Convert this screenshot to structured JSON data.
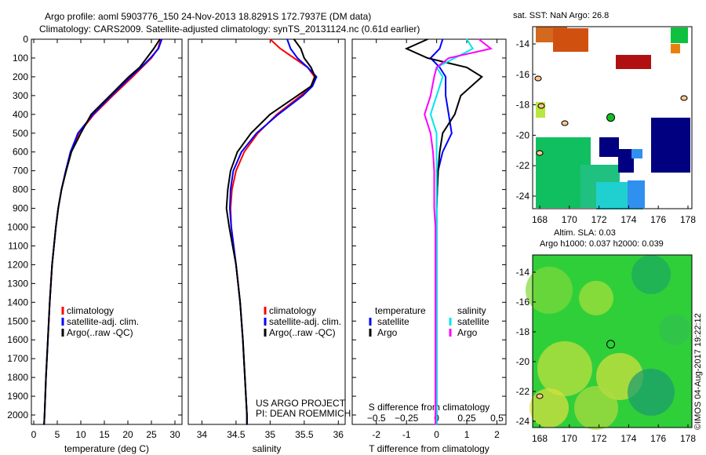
{
  "title_line1": "Argo profile: aoml 5903776_150 24-Nov-2013 18.8291S 172.7937E (DM data)",
  "title_line2": "Climatology: CARS2009. Satellite-adjusted climatology: synTS_20131124.nc (0.61d earlier)",
  "credit_line1": "US ARGO PROJECT",
  "credit_line2": "PI: DEAN ROEMMICH",
  "footer_stamp": "©IMOS 04-Aug-2017 19:22:12",
  "colors": {
    "climatology": "#ff0000",
    "satellite": "#0000ff",
    "argo": "#000000",
    "sal_satellite": "#00e5ee",
    "sal_argo": "#ff00ff"
  },
  "chart_data": [
    {
      "type": "line",
      "xlabel": "temperature (deg C)",
      "ylabel": "",
      "xlim": [
        -0.5,
        31.5
      ],
      "ylim": [
        2050,
        0
      ],
      "xticks": [
        0,
        5,
        10,
        15,
        20,
        25,
        30
      ],
      "yticks": [
        0,
        100,
        200,
        300,
        400,
        500,
        600,
        700,
        800,
        900,
        1000,
        1100,
        1200,
        1300,
        1400,
        1500,
        1600,
        1700,
        1800,
        1900,
        2000
      ],
      "legend": [
        "climatology",
        "satellite-adj. clim.",
        "Argo(..raw -QC)"
      ],
      "depth": [
        0,
        50,
        100,
        150,
        200,
        300,
        400,
        500,
        600,
        700,
        800,
        900,
        1000,
        1200,
        1400,
        1600,
        1800,
        2000,
        2050
      ],
      "series": [
        {
          "name": "climatology",
          "values": [
            27.0,
            26.4,
            25.0,
            23.0,
            21.0,
            16.8,
            12.8,
            9.6,
            7.9,
            6.8,
            5.9,
            5.2,
            4.7,
            3.9,
            3.4,
            3.0,
            2.6,
            2.3,
            2.2
          ]
        },
        {
          "name": "satellite-adj. clim.",
          "values": [
            27.2,
            26.5,
            24.8,
            22.8,
            20.6,
            16.5,
            12.6,
            9.4,
            7.8,
            6.8,
            5.9,
            5.2,
            4.7,
            3.9,
            3.4,
            3.0,
            2.6,
            2.3,
            2.2
          ]
        },
        {
          "name": "Argo(..raw -QC)",
          "values": [
            26.8,
            25.5,
            24.0,
            22.5,
            20.2,
            16.2,
            12.2,
            10.0,
            8.0,
            6.9,
            5.9,
            5.2,
            4.7,
            3.9,
            3.4,
            3.0,
            2.6,
            2.3,
            2.2
          ]
        }
      ]
    },
    {
      "type": "line",
      "xlabel": "salinity",
      "xlim": [
        33.8,
        36.1
      ],
      "ylim": [
        2050,
        0
      ],
      "xticks": [
        34,
        34.5,
        35,
        35.5,
        36
      ],
      "legend": [
        "climatology",
        "satellite-adj. clim.",
        "Argo(..raw -QC)"
      ],
      "depth": [
        0,
        50,
        100,
        150,
        200,
        250,
        300,
        400,
        500,
        600,
        700,
        800,
        900,
        1000,
        1200,
        1400,
        1600,
        1800,
        2000,
        2050
      ],
      "series": [
        {
          "name": "climatology",
          "values": [
            35.0,
            35.15,
            35.35,
            35.55,
            35.65,
            35.6,
            35.45,
            35.1,
            34.82,
            34.62,
            34.5,
            34.44,
            34.42,
            34.43,
            34.5,
            34.56,
            34.6,
            34.63,
            34.66,
            34.66
          ]
        },
        {
          "name": "satellite-adj. clim.",
          "values": [
            35.25,
            35.3,
            35.4,
            35.55,
            35.68,
            35.62,
            35.48,
            35.12,
            34.8,
            34.58,
            34.46,
            34.42,
            34.41,
            34.43,
            34.5,
            34.56,
            34.6,
            34.63,
            34.66,
            34.66
          ]
        },
        {
          "name": "Argo(..raw -QC)",
          "values": [
            35.35,
            35.45,
            35.5,
            35.6,
            35.66,
            35.6,
            35.4,
            35.0,
            34.72,
            34.52,
            34.42,
            34.38,
            34.36,
            34.4,
            34.5,
            34.56,
            34.6,
            34.63,
            34.66,
            34.66
          ]
        }
      ]
    },
    {
      "type": "line",
      "xlabel": "T difference from climatology",
      "x2label": "S difference from climatology",
      "xlim": [
        -2.8,
        2.3
      ],
      "ylim": [
        2050,
        0
      ],
      "xticks": [
        -2,
        -1,
        0,
        1,
        2
      ],
      "x2ticks": [
        -0.5,
        -0.25,
        0,
        0.25,
        0.5
      ],
      "legend_temperature_title": "temperature",
      "legend_salinity_title": "salinity",
      "legend": [
        "satellite",
        "Argo",
        "satellite",
        "Argo"
      ],
      "depth": [
        0,
        50,
        100,
        150,
        200,
        300,
        400,
        500,
        600,
        700,
        800,
        900,
        1000,
        1200,
        1500,
        2000,
        2050
      ],
      "series": [
        {
          "name": "T satellite",
          "values": [
            0.2,
            0.1,
            -0.2,
            0.1,
            0.3,
            0.3,
            0.4,
            0.5,
            0.2,
            0.05,
            0.02,
            0.0,
            0.0,
            0.0,
            0.0,
            0.0,
            0.0
          ]
        },
        {
          "name": "T Argo",
          "values": [
            -0.3,
            -1.0,
            -0.3,
            1.0,
            1.5,
            0.8,
            0.6,
            0.2,
            0.1,
            0.05,
            0.02,
            0.0,
            0.0,
            0.0,
            0.0,
            0.0,
            0.0
          ]
        },
        {
          "name": "S satellite (S units)",
          "values": [
            0.25,
            0.3,
            0.15,
            0.0,
            0.05,
            0.0,
            -0.05,
            0.0,
            0.0,
            0.0,
            0.0,
            0.0,
            0.0,
            0.0,
            0.0,
            0.0,
            0.0
          ]
        },
        {
          "name": "S Argo (S units)",
          "values": [
            0.35,
            0.45,
            0.1,
            0.0,
            -0.02,
            -0.05,
            -0.1,
            -0.05,
            -0.03,
            -0.02,
            -0.02,
            -0.02,
            -0.01,
            -0.01,
            -0.01,
            -0.01,
            -0.01
          ]
        }
      ]
    }
  ],
  "map_sst": {
    "title": "sat. SST: NaN Argo: 26.8",
    "xticks": [
      168,
      170,
      172,
      174,
      176,
      178
    ],
    "yticks": [
      -14,
      -16,
      -18,
      -20,
      -22,
      -24
    ],
    "argo_lon": 172.79,
    "argo_lat": -18.83
  },
  "map_sla": {
    "title_line1": "Altim. SLA: 0.03",
    "title_line2": "Argo h1000: 0.037 h2000: 0.039",
    "xticks": [
      168,
      170,
      172,
      174,
      176,
      178
    ],
    "yticks": [
      -14,
      -16,
      -18,
      -20,
      -22,
      -24
    ]
  }
}
